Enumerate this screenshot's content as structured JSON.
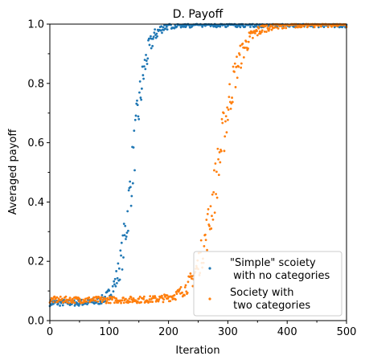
{
  "chart_data": {
    "type": "scatter",
    "title": "D. Payoff",
    "xlabel": "Iteration",
    "ylabel": "Averaged payoff",
    "xlim": [
      0,
      500
    ],
    "ylim": [
      0,
      1.0
    ],
    "xticks": [
      "0",
      "100",
      "200",
      "300",
      "400",
      "500"
    ],
    "yticks": [
      "0.0",
      "0.2",
      "0.4",
      "0.6",
      "0.8",
      "1.0"
    ],
    "grid": false,
    "legend_position": "lower-right",
    "series": [
      {
        "name": "\"Simple\" scoiety\n with no categories",
        "legend_lines": [
          "\"Simple\" scoiety",
          " with no categories"
        ],
        "color": "#1f77b4",
        "model": {
          "kind": "logistic",
          "base": 0.06,
          "top": 1.0,
          "midpoint": 140,
          "steepness": 0.085,
          "x_start": 0,
          "x_end": 500
        }
      },
      {
        "name": "Society with\n two categories",
        "legend_lines": [
          "Society with",
          " two categories"
        ],
        "color": "#ff7f0e",
        "model": {
          "kind": "logistic",
          "base": 0.07,
          "top": 1.0,
          "midpoint": 285,
          "steepness": 0.055,
          "x_start": 0,
          "x_end": 500
        }
      }
    ]
  }
}
